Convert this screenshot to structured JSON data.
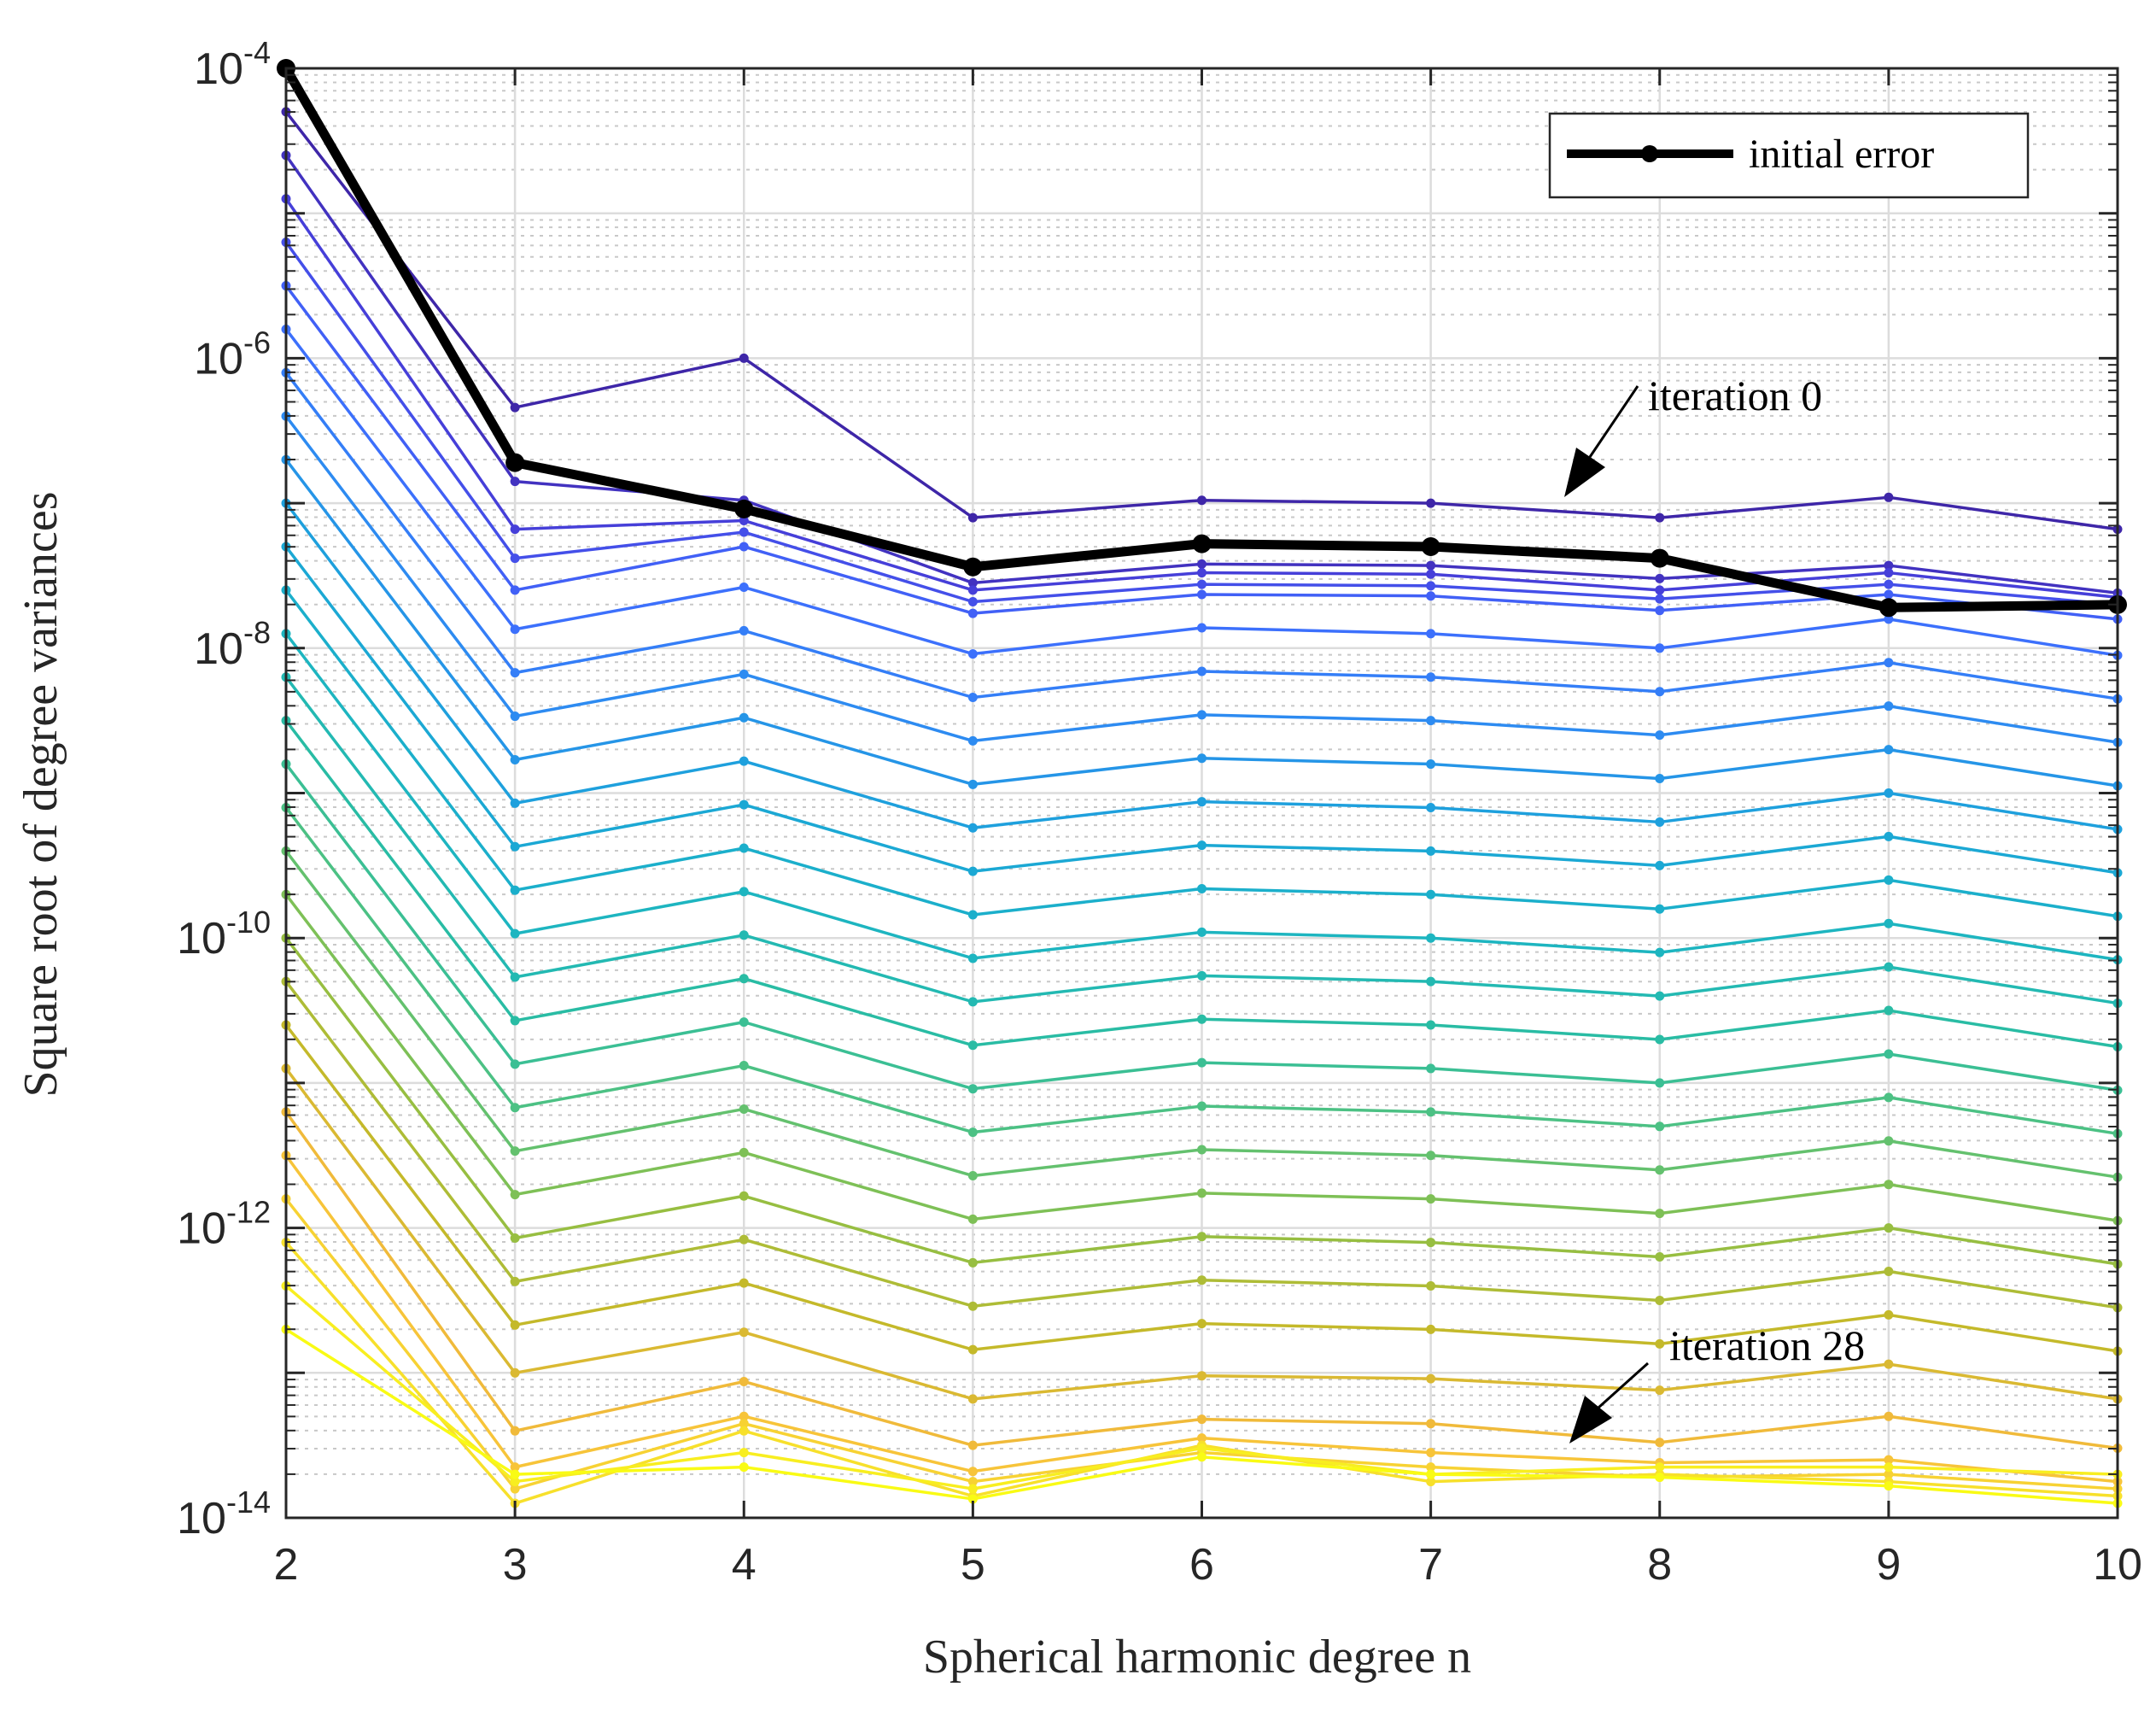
{
  "chart_data": {
    "type": "line",
    "yscale": "log",
    "xlabel": "Spherical harmonic degree n",
    "ylabel": "Square root of degree variances",
    "x": [
      2,
      3,
      4,
      5,
      6,
      7,
      8,
      9,
      10
    ],
    "xlim": [
      2,
      10
    ],
    "ylim_exp": [
      -14,
      -4
    ],
    "x_ticks": [
      "2",
      "3",
      "4",
      "5",
      "6",
      "7",
      "8",
      "9",
      "10"
    ],
    "y_ticks": [
      {
        "base": "10",
        "exp": "-4"
      },
      {
        "base": "10",
        "exp": "-6"
      },
      {
        "base": "10",
        "exp": "-8"
      },
      {
        "base": "10",
        "exp": "-10"
      },
      {
        "base": "10",
        "exp": "-12"
      },
      {
        "base": "10",
        "exp": "-14"
      }
    ],
    "grid": true,
    "minor_grid": true,
    "legend": {
      "position": "top-right",
      "entries": [
        "initial error"
      ]
    },
    "annotations": [
      {
        "text": "iteration 0",
        "points_to": {
          "x": 7.6,
          "y_exp": -7.05
        }
      },
      {
        "text": "iteration 28",
        "points_to": {
          "x": 7.6,
          "y_exp": -13.65
        }
      }
    ],
    "initial_error": {
      "name": "initial error",
      "color": "#000000",
      "y_exp": [
        -4.0,
        -6.72,
        -7.04,
        -7.44,
        -7.28,
        -7.3,
        -7.38,
        -7.72,
        -7.7
      ]
    },
    "iterations": {
      "count": 29,
      "first": 0,
      "last": 28,
      "colormap": [
        "#3e26a8",
        "#4743e1",
        "#3e6cfe",
        "#2d8bf1",
        "#1ba3da",
        "#1bb4c5",
        "#29bca4",
        "#52c27f",
        "#90bf45",
        "#c4b92a",
        "#f7ba3d",
        "#f7dc2f",
        "#f9fb14"
      ],
      "series_y_exp": [
        [
          -4.3,
          -6.34,
          -6.0,
          -7.1,
          -6.98,
          -7.0,
          -7.1,
          -6.96,
          -7.18
        ],
        [
          -4.6,
          -6.85,
          -6.98,
          -7.55,
          -7.42,
          -7.43,
          -7.52,
          -7.43,
          -7.62
        ],
        [
          -4.9,
          -7.18,
          -7.12,
          -7.6,
          -7.48,
          -7.49,
          -7.6,
          -7.48,
          -7.65
        ],
        [
          -5.2,
          -7.38,
          -7.2,
          -7.68,
          -7.56,
          -7.57,
          -7.66,
          -7.56,
          -7.7
        ],
        [
          -5.5,
          -7.6,
          -7.3,
          -7.76,
          -7.63,
          -7.64,
          -7.74,
          -7.63,
          -7.8
        ],
        [
          -5.8,
          -7.87,
          -7.58,
          -8.04,
          -7.86,
          -7.9,
          -8.0,
          -7.8,
          -8.05
        ],
        [
          -6.1,
          -8.17,
          -7.88,
          -8.34,
          -8.16,
          -8.2,
          -8.3,
          -8.1,
          -8.35
        ],
        [
          -6.4,
          -8.47,
          -8.18,
          -8.64,
          -8.46,
          -8.5,
          -8.6,
          -8.4,
          -8.65
        ],
        [
          -6.7,
          -8.77,
          -8.48,
          -8.94,
          -8.76,
          -8.8,
          -8.9,
          -8.7,
          -8.95
        ],
        [
          -7.0,
          -9.07,
          -8.78,
          -9.24,
          -9.06,
          -9.1,
          -9.2,
          -9.0,
          -9.25
        ],
        [
          -7.3,
          -9.37,
          -9.08,
          -9.54,
          -9.36,
          -9.4,
          -9.5,
          -9.3,
          -9.55
        ],
        [
          -7.6,
          -9.67,
          -9.38,
          -9.84,
          -9.66,
          -9.7,
          -9.8,
          -9.6,
          -9.85
        ],
        [
          -7.9,
          -9.97,
          -9.68,
          -10.14,
          -9.96,
          -10.0,
          -10.1,
          -9.9,
          -10.15
        ],
        [
          -8.2,
          -10.27,
          -9.98,
          -10.44,
          -10.26,
          -10.3,
          -10.4,
          -10.2,
          -10.45
        ],
        [
          -8.5,
          -10.57,
          -10.28,
          -10.74,
          -10.56,
          -10.6,
          -10.7,
          -10.5,
          -10.75
        ],
        [
          -8.8,
          -10.87,
          -10.58,
          -11.04,
          -10.86,
          -10.9,
          -11.0,
          -10.8,
          -11.05
        ],
        [
          -9.1,
          -11.17,
          -10.88,
          -11.34,
          -11.16,
          -11.2,
          -11.3,
          -11.1,
          -11.35
        ],
        [
          -9.4,
          -11.47,
          -11.18,
          -11.64,
          -11.46,
          -11.5,
          -11.6,
          -11.4,
          -11.65
        ],
        [
          -9.7,
          -11.77,
          -11.48,
          -11.94,
          -11.76,
          -11.8,
          -11.9,
          -11.7,
          -11.95
        ],
        [
          -10.0,
          -12.07,
          -11.78,
          -12.24,
          -12.06,
          -12.1,
          -12.2,
          -12.0,
          -12.25
        ],
        [
          -10.3,
          -12.37,
          -12.08,
          -12.54,
          -12.36,
          -12.4,
          -12.5,
          -12.3,
          -12.55
        ],
        [
          -10.6,
          -12.67,
          -12.38,
          -12.84,
          -12.66,
          -12.7,
          -12.8,
          -12.6,
          -12.85
        ],
        [
          -10.9,
          -13.0,
          -12.72,
          -13.18,
          -13.02,
          -13.04,
          -13.12,
          -12.94,
          -13.18
        ],
        [
          -11.2,
          -13.4,
          -13.06,
          -13.5,
          -13.32,
          -13.35,
          -13.48,
          -13.3,
          -13.52
        ],
        [
          -11.5,
          -13.65,
          -13.3,
          -13.68,
          -13.45,
          -13.55,
          -13.62,
          -13.6,
          -13.75
        ],
        [
          -11.8,
          -13.8,
          -13.35,
          -13.75,
          -13.55,
          -13.65,
          -13.72,
          -13.7,
          -13.8
        ],
        [
          -12.1,
          -13.9,
          -13.4,
          -13.85,
          -13.5,
          -13.75,
          -13.7,
          -13.75,
          -13.85
        ],
        [
          -12.4,
          -13.75,
          -13.55,
          -13.8,
          -13.52,
          -13.7,
          -13.65,
          -13.65,
          -13.7
        ],
        [
          -12.7,
          -13.7,
          -13.65,
          -13.87,
          -13.58,
          -13.7,
          -13.72,
          -13.78,
          -13.9
        ]
      ]
    }
  }
}
